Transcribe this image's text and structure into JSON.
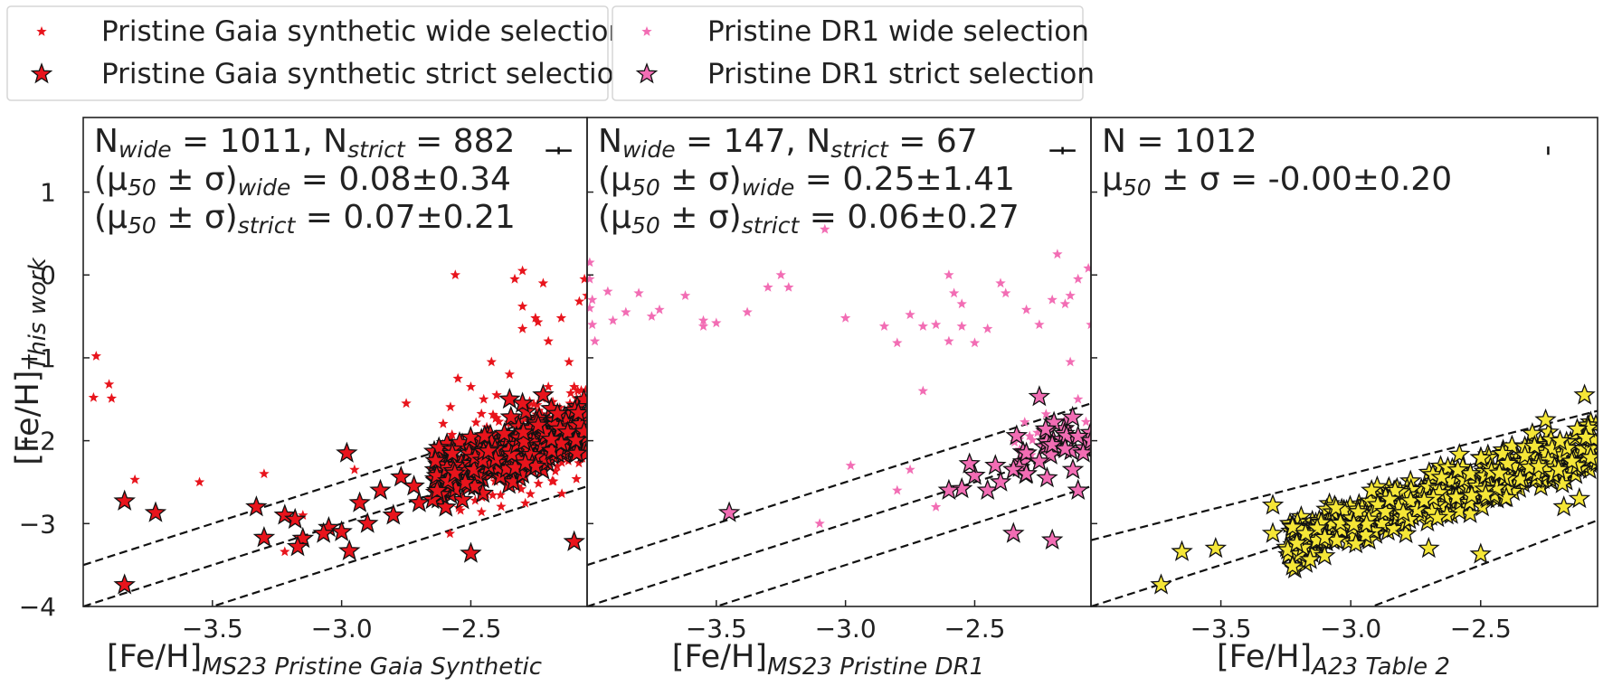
{
  "figure": {
    "legends": [
      {
        "items": [
          {
            "label": "Pristine Gaia synthetic wide selection",
            "marker": "small-star",
            "color": "#e8141c"
          },
          {
            "label": "Pristine Gaia synthetic strict selection",
            "marker": "big-star",
            "color": "#e8141c"
          }
        ]
      },
      {
        "items": [
          {
            "label": "Pristine DR1 wide selection",
            "marker": "small-star",
            "color": "#f26db4"
          },
          {
            "label": "Pristine DR1 strict selection",
            "marker": "big-star",
            "color": "#f26db4"
          }
        ]
      }
    ],
    "ylabel": {
      "main": "[Fe/H]",
      "sub": "This work"
    }
  },
  "chart_data": [
    {
      "type": "scatter",
      "xlim": [
        -4.0,
        -2.05
      ],
      "ylim": [
        -4.0,
        1.9
      ],
      "xticks": [
        -3.5,
        -3.0,
        -2.5
      ],
      "yticks": [
        -4,
        -3,
        -2,
        -1,
        0,
        1
      ],
      "xlabel": {
        "main": "[Fe/H]",
        "sub": "MS23 Pristine Gaia Synthetic"
      },
      "stats": [
        {
          "parts": [
            [
              "N",
              ""
            ],
            [
              "wide",
              "sub"
            ],
            [
              " = 1011, N",
              ""
            ],
            [
              "strict",
              "sub"
            ],
            [
              " = 882",
              ""
            ]
          ]
        },
        {
          "parts": [
            [
              "(μ",
              ""
            ],
            [
              "50",
              "sub"
            ],
            [
              " ± σ)",
              ""
            ],
            [
              "wide",
              "sub"
            ],
            [
              " = 0.08±0.34",
              ""
            ]
          ]
        },
        {
          "parts": [
            [
              "(μ",
              ""
            ],
            [
              "50",
              "sub"
            ],
            [
              " ± σ)",
              ""
            ],
            [
              "strict",
              "sub"
            ],
            [
              " = 0.07±0.21",
              ""
            ]
          ]
        }
      ],
      "errorbar": {
        "x": -2.16,
        "y": 1.5,
        "xerr": 0.05,
        "yerr": 0.02
      },
      "color": "#e8141c",
      "seed": 11,
      "series": [
        {
          "name": "Pristine Gaia synthetic wide selection",
          "marker": "small",
          "points": [
            [
              -3.95,
              -0.98
            ],
            [
              -3.96,
              -1.48
            ],
            [
              -3.9,
              -1.32
            ],
            [
              -3.89,
              -1.49
            ],
            [
              -3.8,
              -2.47
            ],
            [
              -3.55,
              -2.5
            ],
            [
              -3.3,
              -2.4
            ],
            [
              -3.15,
              -2.9
            ],
            [
              -3.22,
              -3.34
            ],
            [
              -2.95,
              -2.35
            ],
            [
              -2.75,
              -1.55
            ],
            [
              -2.6,
              -2.1
            ],
            [
              -2.56,
              0.0
            ],
            [
              -2.48,
              -1.78
            ],
            [
              -2.45,
              -1.5
            ],
            [
              -2.42,
              -1.05
            ],
            [
              -2.4,
              -1.45
            ],
            [
              -2.35,
              -1.2
            ],
            [
              -2.33,
              -0.05
            ],
            [
              -2.3,
              0.05
            ],
            [
              -2.3,
              -0.38
            ],
            [
              -2.3,
              -0.65
            ],
            [
              -2.25,
              -0.52
            ],
            [
              -2.24,
              -0.57
            ],
            [
              -2.22,
              -0.1
            ],
            [
              -2.2,
              -0.8
            ],
            [
              -2.15,
              -0.52
            ],
            [
              -2.12,
              -1.05
            ],
            [
              -2.1,
              -1.35
            ],
            [
              -2.08,
              -0.32
            ],
            [
              -2.06,
              -0.05
            ],
            [
              -2.05,
              -0.25
            ],
            [
              -2.2,
              -1.35
            ],
            [
              -2.1,
              -1.6
            ],
            [
              -2.5,
              -1.35
            ],
            [
              -2.55,
              -1.25
            ],
            [
              -2.6,
              -2.6
            ]
          ],
          "cluster": {
            "count": 230,
            "xmin": -2.62,
            "xmax": -2.05,
            "slope": 1.0,
            "offset": 0.2,
            "spread": 0.55
          }
        },
        {
          "name": "Pristine Gaia synthetic strict selection",
          "marker": "big",
          "points": [
            [
              -3.84,
              -2.73
            ],
            [
              -3.84,
              -3.74
            ],
            [
              -3.72,
              -2.87
            ],
            [
              -3.33,
              -2.8
            ],
            [
              -3.22,
              -2.9
            ],
            [
              -3.18,
              -2.95
            ],
            [
              -3.3,
              -3.17
            ],
            [
              -3.15,
              -3.18
            ],
            [
              -3.17,
              -3.28
            ],
            [
              -3.05,
              -3.05
            ],
            [
              -2.98,
              -2.15
            ],
            [
              -2.97,
              -3.33
            ],
            [
              -2.93,
              -2.75
            ],
            [
              -2.85,
              -2.6
            ],
            [
              -2.8,
              -2.9
            ],
            [
              -2.77,
              -2.44
            ],
            [
              -2.9,
              -3.0
            ],
            [
              -3.0,
              -3.1
            ],
            [
              -3.07,
              -3.12
            ],
            [
              -2.72,
              -2.55
            ],
            [
              -2.7,
              -2.75
            ],
            [
              -2.5,
              -3.36
            ],
            [
              -2.3,
              -1.55
            ],
            [
              -2.22,
              -1.45
            ],
            [
              -2.1,
              -3.22
            ],
            [
              -2.35,
              -1.5
            ]
          ],
          "cluster": {
            "count": 320,
            "xmin": -2.65,
            "xmax": -2.05,
            "slope": 1.0,
            "offset": 0.2,
            "spread": 0.34
          }
        }
      ],
      "dashed_lines": [
        {
          "slope": 1.0,
          "intercept": 0.5
        },
        {
          "slope": 1.0,
          "intercept": 0.0
        },
        {
          "slope": 1.0,
          "intercept": -0.5
        }
      ]
    },
    {
      "type": "scatter",
      "xlim": [
        -4.0,
        -2.05
      ],
      "ylim": [
        -4.0,
        1.9
      ],
      "xticks": [
        -3.5,
        -3.0,
        -2.5
      ],
      "yticks": [
        -4,
        -3,
        -2,
        -1,
        0,
        1
      ],
      "xlabel": {
        "main": "[Fe/H]",
        "sub": "MS23 Pristine DR1"
      },
      "stats": [
        {
          "parts": [
            [
              "N",
              ""
            ],
            [
              "wide",
              "sub"
            ],
            [
              " = 147, N",
              ""
            ],
            [
              "strict",
              "sub"
            ],
            [
              " = 67",
              ""
            ]
          ]
        },
        {
          "parts": [
            [
              "(μ",
              ""
            ],
            [
              "50",
              "sub"
            ],
            [
              " ± σ)",
              ""
            ],
            [
              "wide",
              "sub"
            ],
            [
              " = 0.25±1.41",
              ""
            ]
          ]
        },
        {
          "parts": [
            [
              "(μ",
              ""
            ],
            [
              "50",
              "sub"
            ],
            [
              " ± σ)",
              ""
            ],
            [
              "strict",
              "sub"
            ],
            [
              " = 0.06±0.27",
              ""
            ]
          ]
        }
      ],
      "errorbar": {
        "x": -2.16,
        "y": 1.5,
        "xerr": 0.05,
        "yerr": 0.03
      },
      "color": "#f26db4",
      "seed": 23,
      "series": [
        {
          "name": "Pristine DR1 wide selection",
          "marker": "small",
          "points": [
            [
              -3.99,
              0.15
            ],
            [
              -3.99,
              -0.05
            ],
            [
              -3.98,
              -0.3
            ],
            [
              -3.99,
              -0.4
            ],
            [
              -3.98,
              -0.6
            ],
            [
              -3.97,
              -0.8
            ],
            [
              -3.92,
              -0.2
            ],
            [
              -3.9,
              -0.55
            ],
            [
              -3.85,
              -0.45
            ],
            [
              -3.8,
              -0.22
            ],
            [
              -3.75,
              -0.5
            ],
            [
              -3.72,
              -0.42
            ],
            [
              -3.62,
              -0.25
            ],
            [
              -3.55,
              -0.55
            ],
            [
              -3.55,
              -0.62
            ],
            [
              -3.5,
              -0.58
            ],
            [
              -3.38,
              -0.45
            ],
            [
              -3.3,
              -0.15
            ],
            [
              -3.25,
              0.0
            ],
            [
              -3.22,
              -0.15
            ],
            [
              -3.08,
              0.55
            ],
            [
              -3.0,
              -0.52
            ],
            [
              -2.98,
              -2.3
            ],
            [
              -3.1,
              -3.0
            ],
            [
              -2.85,
              -0.62
            ],
            [
              -2.8,
              -0.82
            ],
            [
              -2.75,
              -0.48
            ],
            [
              -2.7,
              -0.62
            ],
            [
              -2.65,
              -0.6
            ],
            [
              -2.6,
              -0.8
            ],
            [
              -2.58,
              -0.22
            ],
            [
              -2.55,
              -0.35
            ],
            [
              -2.6,
              0.0
            ],
            [
              -2.55,
              -0.62
            ],
            [
              -2.5,
              -0.82
            ],
            [
              -2.45,
              -0.65
            ],
            [
              -2.4,
              -0.1
            ],
            [
              -2.38,
              -0.22
            ],
            [
              -2.3,
              -0.42
            ],
            [
              -2.25,
              -0.6
            ],
            [
              -2.2,
              -0.3
            ],
            [
              -2.18,
              0.25
            ],
            [
              -2.15,
              -0.35
            ],
            [
              -2.13,
              -0.25
            ],
            [
              -2.1,
              -0.05
            ],
            [
              -2.06,
              0.08
            ],
            [
              -2.05,
              -0.6
            ],
            [
              -2.13,
              -1.05
            ],
            [
              -2.1,
              -1.5
            ],
            [
              -2.15,
              -1.75
            ],
            [
              -2.7,
              -1.4
            ],
            [
              -2.75,
              -2.35
            ],
            [
              -2.8,
              -2.6
            ],
            [
              -2.65,
              -2.8
            ],
            [
              -2.2,
              -2.2
            ]
          ],
          "cluster": {
            "count": 18,
            "xmin": -2.35,
            "xmax": -2.05,
            "slope": 1.0,
            "offset": 0.3,
            "spread": 0.35
          }
        },
        {
          "name": "Pristine DR1 strict selection",
          "marker": "big",
          "points": [
            [
              -3.45,
              -2.87
            ],
            [
              -2.25,
              -1.47
            ],
            [
              -2.2,
              -3.2
            ],
            [
              -2.35,
              -3.12
            ],
            [
              -2.55,
              -2.58
            ],
            [
              -2.5,
              -2.42
            ],
            [
              -2.45,
              -2.6
            ],
            [
              -2.42,
              -2.3
            ],
            [
              -2.4,
              -2.5
            ],
            [
              -2.35,
              -2.35
            ],
            [
              -2.3,
              -2.4
            ],
            [
              -2.3,
              -2.15
            ],
            [
              -2.25,
              -2.25
            ],
            [
              -2.22,
              -2.45
            ],
            [
              -2.2,
              -2.05
            ],
            [
              -2.15,
              -2.1
            ],
            [
              -2.12,
              -2.35
            ],
            [
              -2.1,
              -1.95
            ],
            [
              -2.08,
              -2.15
            ],
            [
              -2.05,
              -2.0
            ],
            [
              -2.52,
              -2.28
            ],
            [
              -2.6,
              -2.6
            ],
            [
              -2.1,
              -2.6
            ]
          ],
          "cluster": {
            "count": 22,
            "xmin": -2.35,
            "xmax": -2.05,
            "slope": 1.0,
            "offset": 0.15,
            "spread": 0.3
          }
        }
      ],
      "dashed_lines": [
        {
          "slope": 1.0,
          "intercept": 0.5
        },
        {
          "slope": 1.0,
          "intercept": 0.0
        },
        {
          "slope": 1.0,
          "intercept": -0.5
        }
      ]
    },
    {
      "type": "scatter",
      "xlim": [
        -4.0,
        -2.05
      ],
      "ylim": [
        -4.0,
        1.9
      ],
      "xticks": [
        -3.5,
        -3.0,
        -2.5
      ],
      "yticks": [
        -4,
        -3,
        -2,
        -1,
        0,
        1
      ],
      "xlabel": {
        "main": "[Fe/H]",
        "sub": "A23 Table 2"
      },
      "stats": [
        {
          "parts": [
            [
              "N = 1012",
              ""
            ]
          ]
        },
        {
          "parts": [
            [
              "μ",
              ""
            ],
            [
              "50",
              "sub"
            ],
            [
              " ± σ = -0.00±0.20",
              ""
            ]
          ]
        }
      ],
      "errorbar": {
        "x": -2.24,
        "y": 1.5,
        "xerr": 0.0,
        "yerr": 0.05
      },
      "color": "#f5e637",
      "seed": 37,
      "series": [
        {
          "name": "A23 Table 2",
          "marker": "big",
          "points": [
            [
              -3.73,
              -3.74
            ],
            [
              -3.65,
              -3.34
            ],
            [
              -3.52,
              -3.3
            ],
            [
              -3.3,
              -2.78
            ],
            [
              -3.3,
              -3.12
            ],
            [
              -3.1,
              -3.17
            ],
            [
              -2.7,
              -3.3
            ],
            [
              -2.5,
              -3.37
            ],
            [
              -2.25,
              -1.75
            ],
            [
              -2.2,
              -2.35
            ],
            [
              -2.18,
              -2.8
            ],
            [
              -2.12,
              -2.7
            ],
            [
              -2.1,
              -1.45
            ]
          ],
          "cluster": {
            "count": 520,
            "xmin": -3.25,
            "xmax": -2.05,
            "slope": 1.0,
            "offset": 0.0,
            "spread": 0.3
          }
        }
      ],
      "dashed_lines": [
        {
          "slope": 0.8,
          "intercept": 0.0
        },
        {
          "slope": 1.0,
          "intercept": 0.0
        },
        {
          "slope": 1.2,
          "intercept": -0.5
        }
      ]
    }
  ]
}
